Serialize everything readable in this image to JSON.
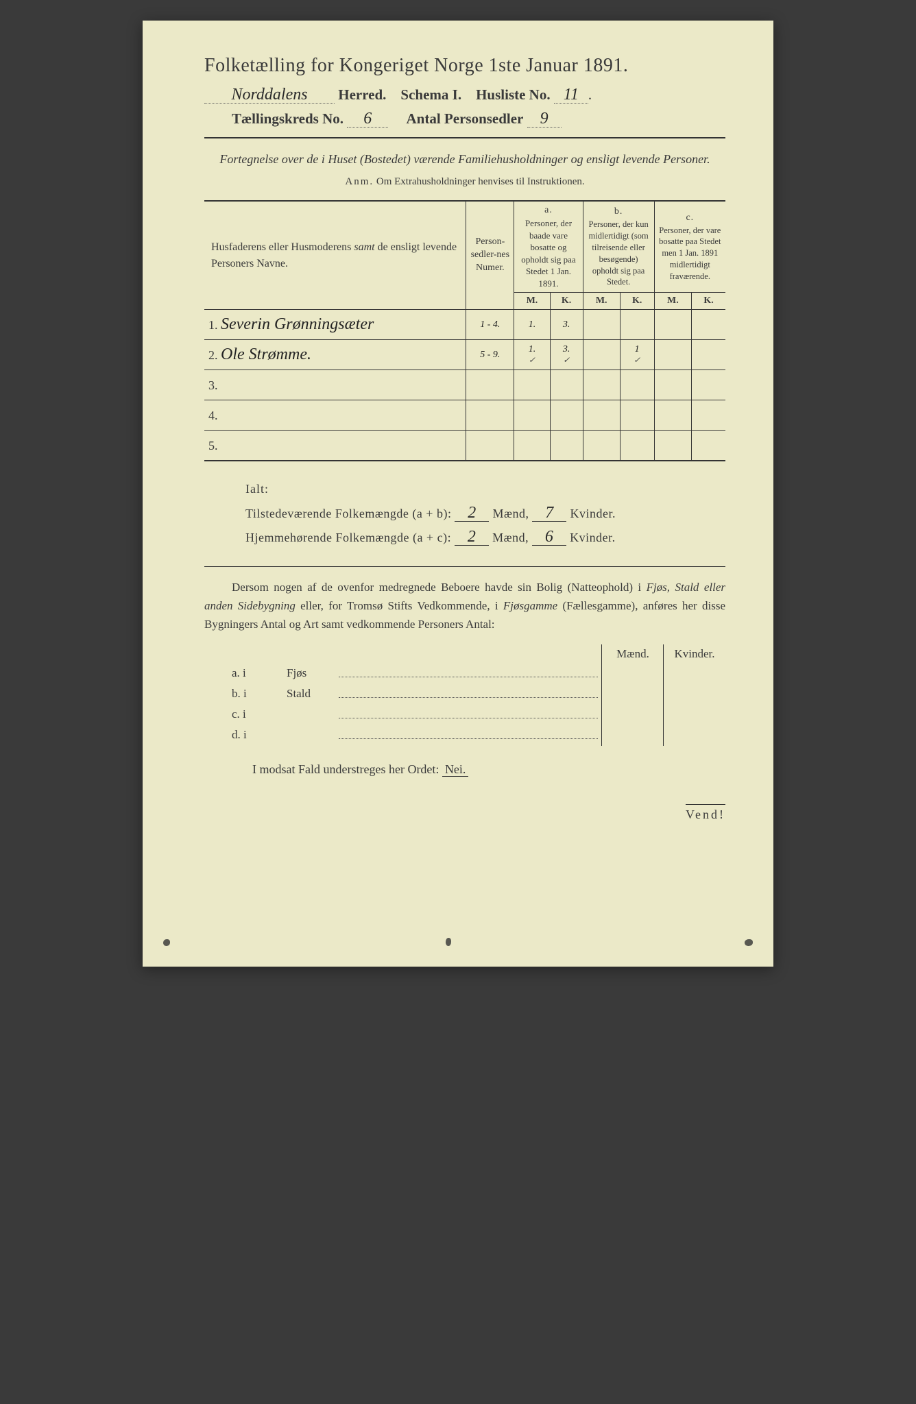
{
  "title": "Folketælling for Kongeriget Norge 1ste Januar 1891.",
  "header": {
    "herred_value": "Norddalens",
    "herred_label": "Herred.",
    "schema_label": "Schema I.",
    "husliste_label": "Husliste No.",
    "husliste_value": "11",
    "kreds_label": "Tællingskreds No.",
    "kreds_value": "6",
    "antal_label": "Antal Personsedler",
    "antal_value": "9"
  },
  "subtitle": "Fortegnelse over de i Huset (Bostedet) værende Familiehusholdninger og ensligt levende Personer.",
  "anm_label": "Anm.",
  "anm_text": "Om Extrahusholdninger henvises til Instruktionen.",
  "table": {
    "col_names": "Husfaderens eller Husmoderens <em>samt</em> de ensligt levende Personers Navne.",
    "col_numer": "Person-sedler-nes Numer.",
    "col_a_label": "a.",
    "col_a_text": "Personer, der baade vare bosatte og opholdt sig paa Stedet 1 Jan. 1891.",
    "col_b_label": "b.",
    "col_b_text": "Personer, der kun midlertidigt (som tilreisende eller besøgende) opholdt sig paa Stedet.",
    "col_c_label": "c.",
    "col_c_text": "Personer, der vare bosatte paa Stedet men 1 Jan. 1891 midlertidigt fraværende.",
    "m": "M.",
    "k": "K.",
    "rows": [
      {
        "n": "1.",
        "name": "Severin Grønningsæter",
        "numer": "1 - 4.",
        "am": "1.",
        "ak": "3.",
        "bm": "",
        "bk": "",
        "cm": "",
        "ck": ""
      },
      {
        "n": "2.",
        "name": "Ole Strømme.",
        "numer": "5 - 9.",
        "am": "1.",
        "ak": "3.",
        "bm": "",
        "bk": "1",
        "cm": "",
        "ck": ""
      },
      {
        "n": "3.",
        "name": "",
        "numer": "",
        "am": "",
        "ak": "",
        "bm": "",
        "bk": "",
        "cm": "",
        "ck": ""
      },
      {
        "n": "4.",
        "name": "",
        "numer": "",
        "am": "",
        "ak": "",
        "bm": "",
        "bk": "",
        "cm": "",
        "ck": ""
      },
      {
        "n": "5.",
        "name": "",
        "numer": "",
        "am": "",
        "ak": "",
        "bm": "",
        "bk": "",
        "cm": "",
        "ck": ""
      }
    ]
  },
  "ialt": {
    "label": "Ialt:",
    "line1_label": "Tilstedeværende Folkemængde (a + b):",
    "line1_m": "2",
    "line1_mlabel": "Mænd,",
    "line1_k": "7",
    "line1_klabel": "Kvinder.",
    "line2_label": "Hjemmehørende Folkemængde (a + c):",
    "line2_m": "2",
    "line2_mlabel": "Mænd,",
    "line2_k": "6",
    "line2_klabel": "Kvinder."
  },
  "para": "Dersom nogen af de ovenfor medregnede Beboere havde sin Bolig (Natteophold) i Fjøs, Stald eller anden Sidebygning eller, for Tromsø Stifts Vedkommende, i Fjøsgamme (Fællesgamme), anføres her disse Bygningers Antal og Art samt vedkommende Personers Antal:",
  "bottom": {
    "maend": "Mænd.",
    "kvinder": "Kvinder.",
    "rows": [
      {
        "lead": "a.  i",
        "label": "Fjøs"
      },
      {
        "lead": "b.  i",
        "label": "Stald"
      },
      {
        "lead": "c.  i",
        "label": ""
      },
      {
        "lead": "d.  i",
        "label": ""
      }
    ]
  },
  "nei_line": "I modsat Fald understreges her Ordet:",
  "nei": "Nei.",
  "vend": "Vend!"
}
